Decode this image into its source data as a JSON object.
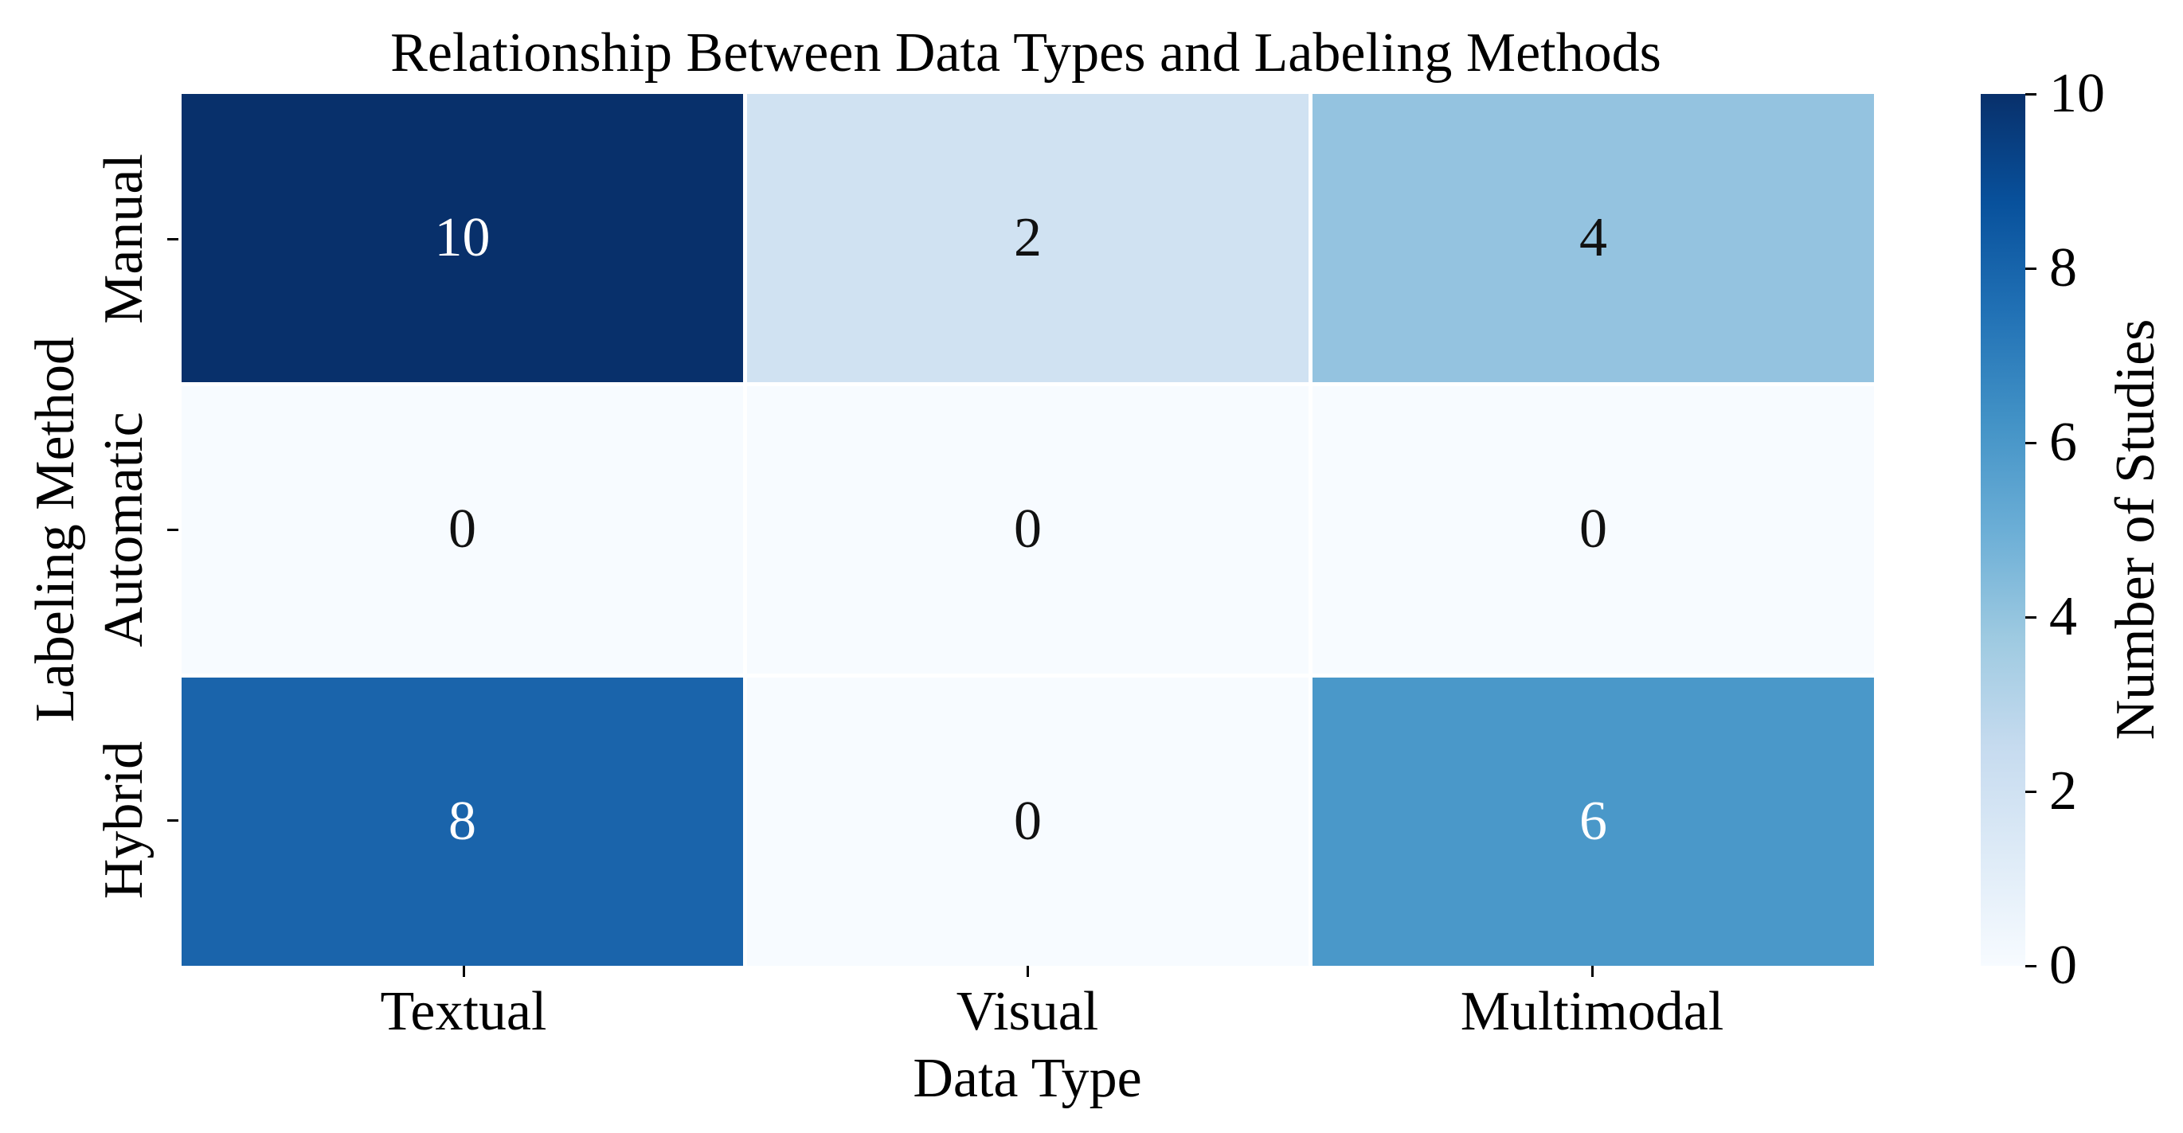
{
  "chart_data": {
    "type": "heatmap",
    "title": "Relationship Between Data Types and Labeling Methods",
    "xlabel": "Data Type",
    "ylabel": "Labeling Method",
    "columns": [
      "Textual",
      "Visual",
      "Multimodal"
    ],
    "rows": [
      "Manual",
      "Automatic",
      "Hybrid"
    ],
    "values": [
      [
        10,
        2,
        4
      ],
      [
        0,
        0,
        0
      ],
      [
        8,
        0,
        6
      ]
    ],
    "value_range": [
      0,
      10
    ],
    "colormap": "Blues",
    "grid_line_color": "#ffffff",
    "cell_colors": [
      [
        "#08306b",
        "#d0e2f2",
        "#94c3e0"
      ],
      [
        "#f7fbff",
        "#f7fbff",
        "#f7fbff"
      ],
      [
        "#1a64ab",
        "#f7fbff",
        "#4a98c9"
      ]
    ],
    "annotation_colors": [
      [
        "#ffffff",
        "#111111",
        "#111111"
      ],
      [
        "#111111",
        "#111111",
        "#111111"
      ],
      [
        "#ffffff",
        "#111111",
        "#ffffff"
      ]
    ],
    "colorbar": {
      "label": "Number of Studies",
      "ticks": [
        "10",
        "8",
        "6",
        "4",
        "2",
        "0"
      ],
      "min": 0,
      "max": 10,
      "gradient_stops": [
        "#f7fbff 0%",
        "#deebf7 12.5%",
        "#c6dbef 25%",
        "#9ecae1 37.5%",
        "#6baed6 50%",
        "#4292c6 62.5%",
        "#2171b5 75%",
        "#08519c 87.5%",
        "#08306b 100%"
      ]
    }
  }
}
